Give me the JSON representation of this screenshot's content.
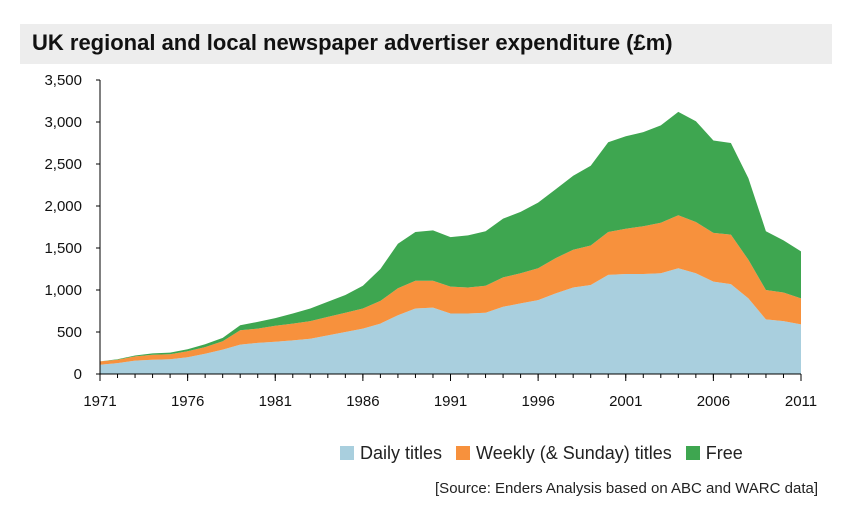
{
  "chart_data": {
    "type": "area",
    "stacked": true,
    "title": "UK regional and local newspaper advertiser expenditure (£m)",
    "xlabel": "",
    "ylabel": "",
    "ylim": [
      0,
      3500
    ],
    "xlim": [
      1971,
      2011
    ],
    "y_ticks": [
      "0",
      "500",
      "1,000",
      "1,500",
      "2,000",
      "2,500",
      "3,000",
      "3,500"
    ],
    "x_ticks": [
      "1971",
      "1976",
      "1981",
      "1986",
      "1991",
      "1996",
      "2001",
      "2006",
      "2011"
    ],
    "x": [
      1971,
      1972,
      1973,
      1974,
      1975,
      1976,
      1977,
      1978,
      1979,
      1980,
      1981,
      1982,
      1983,
      1984,
      1985,
      1986,
      1987,
      1988,
      1989,
      1990,
      1991,
      1992,
      1993,
      1994,
      1995,
      1996,
      1997,
      1998,
      1999,
      2000,
      2001,
      2002,
      2003,
      2004,
      2005,
      2006,
      2007,
      2008,
      2009,
      2010,
      2011
    ],
    "series": [
      {
        "name": "Daily titles",
        "color": "#a9cfde",
        "values": [
          110,
          130,
          160,
          170,
          175,
          200,
          240,
          290,
          350,
          370,
          385,
          400,
          420,
          460,
          500,
          540,
          600,
          700,
          780,
          790,
          720,
          720,
          730,
          800,
          840,
          880,
          960,
          1030,
          1060,
          1180,
          1190,
          1190,
          1200,
          1260,
          1200,
          1100,
          1070,
          900,
          650,
          630,
          590
        ]
      },
      {
        "name": "Weekly (& Sunday) titles",
        "color": "#f7913d",
        "values": [
          40,
          40,
          50,
          60,
          60,
          70,
          80,
          100,
          170,
          170,
          190,
          200,
          210,
          220,
          230,
          240,
          270,
          320,
          330,
          320,
          320,
          310,
          320,
          350,
          360,
          380,
          420,
          450,
          470,
          510,
          540,
          570,
          600,
          630,
          610,
          580,
          590,
          460,
          350,
          340,
          310
        ]
      },
      {
        "name": "Free",
        "color": "#3ea650",
        "values": [
          0,
          5,
          10,
          15,
          20,
          25,
          35,
          40,
          60,
          80,
          90,
          120,
          150,
          180,
          210,
          270,
          380,
          530,
          580,
          600,
          590,
          620,
          650,
          700,
          730,
          780,
          820,
          880,
          950,
          1070,
          1100,
          1120,
          1160,
          1230,
          1200,
          1100,
          1090,
          970,
          700,
          620,
          560
        ]
      }
    ]
  },
  "source": "[Source: Enders Analysis based on ABC and WARC data]"
}
